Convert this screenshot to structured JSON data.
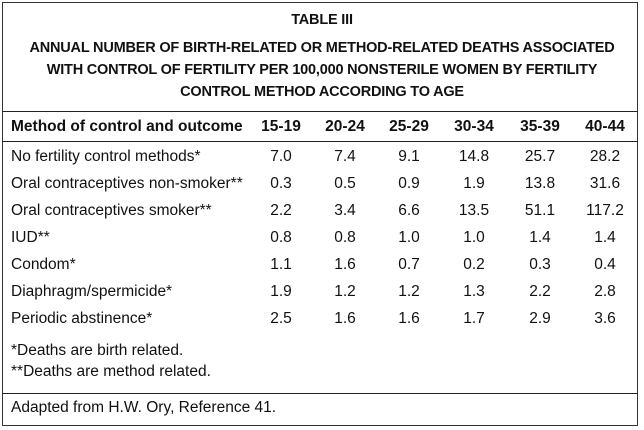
{
  "table": {
    "label": "TABLE III",
    "title_lines": [
      "ANNUAL NUMBER OF BIRTH-RELATED OR METHOD-RELATED DEATHS ASSOCIATED",
      "WITH CONTROL OF FERTILITY PER 100,000 NONSTERILE WOMEN BY FERTILITY",
      "CONTROL METHOD ACCORDING TO AGE"
    ],
    "columns": [
      "Method of control and outcome",
      "15-19",
      "20-24",
      "25-29",
      "30-34",
      "35-39",
      "40-44"
    ],
    "rows": [
      {
        "method": "No fertility control methods*",
        "values": [
          "7.0",
          "7.4",
          "9.1",
          "14.8",
          "25.7",
          "28.2"
        ]
      },
      {
        "method": "Oral contraceptives non-smoker**",
        "values": [
          "0.3",
          "0.5",
          "0.9",
          "1.9",
          "13.8",
          "31.6"
        ]
      },
      {
        "method": "Oral contraceptives smoker**",
        "values": [
          "2.2",
          "3.4",
          "6.6",
          "13.5",
          "51.1",
          "117.2"
        ]
      },
      {
        "method": "IUD**",
        "values": [
          "0.8",
          "0.8",
          "1.0",
          "1.0",
          "1.4",
          "1.4"
        ]
      },
      {
        "method": "Condom*",
        "values": [
          "1.1",
          "1.6",
          "0.7",
          "0.2",
          "0.3",
          "0.4"
        ]
      },
      {
        "method": "Diaphragm/spermicide*",
        "values": [
          "1.9",
          "1.2",
          "1.2",
          "1.3",
          "2.2",
          "2.8"
        ]
      },
      {
        "method": "Periodic abstinence*",
        "values": [
          "2.5",
          "1.6",
          "1.6",
          "1.7",
          "2.9",
          "3.6"
        ]
      }
    ],
    "footnotes": [
      "*Deaths are birth related.",
      "**Deaths are method related."
    ],
    "source": "Adapted from H.W. Ory, Reference 41."
  }
}
